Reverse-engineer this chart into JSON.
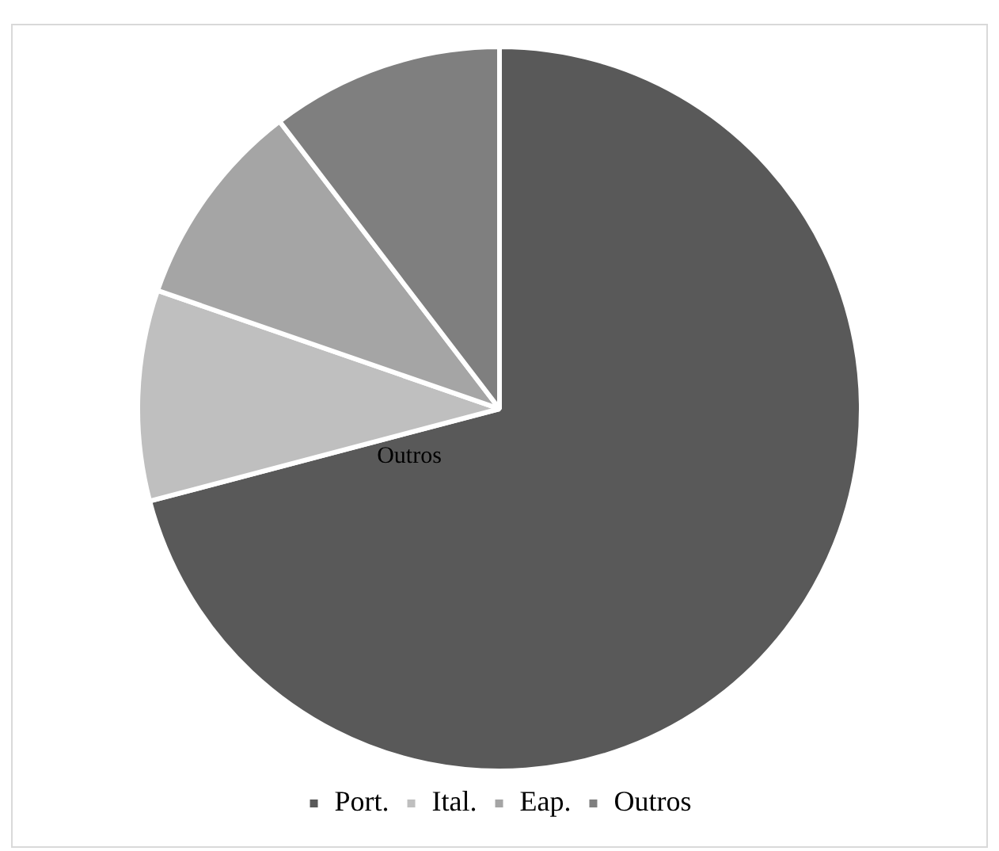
{
  "chart_data": {
    "type": "pie",
    "categories": [
      "Port.",
      "Ital.",
      "Eap.",
      "Outros"
    ],
    "values": [
      70.9,
      9.4,
      9.3,
      10.4
    ],
    "colors": [
      "#595959",
      "#bfbfbf",
      "#a5a5a5",
      "#7f7f7f"
    ],
    "legend": "bottom",
    "annotations": [
      "Outros"
    ]
  }
}
